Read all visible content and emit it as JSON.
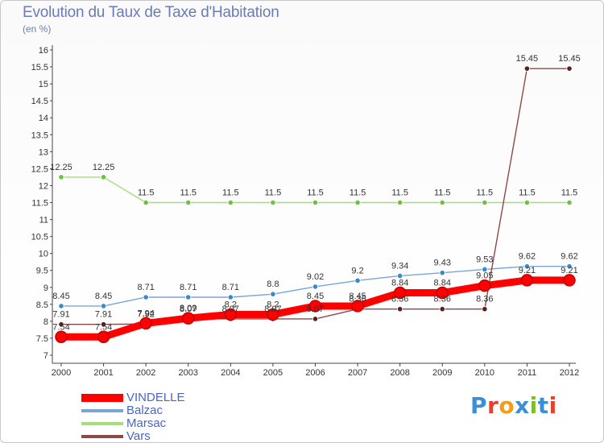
{
  "title": "Evolution du Taux de Taxe d'Habitation",
  "subtitle": "(en %)",
  "logo": {
    "text": "Proxiti",
    "colors": [
      "#3a8fd6",
      "#e8402a",
      "#f29b1d",
      "#3a8fd6",
      "#7cbf2a",
      "#3a8fd6",
      "#e8402a"
    ]
  },
  "chart_data": {
    "type": "line",
    "title": "Evolution du Taux de Taxe d'Habitation",
    "ylabel": "(en %)",
    "xlabel": "",
    "ylim": [
      7,
      16
    ],
    "ytick_step": 0.5,
    "grid": false,
    "legend_position": "bottom-left",
    "categories": [
      "2000",
      "2001",
      "2002",
      "2003",
      "2004",
      "2005",
      "2006",
      "2007",
      "2008",
      "2009",
      "2010",
      "2011",
      "2012"
    ],
    "yticks": [
      "7",
      "7.5",
      "8",
      "8.5",
      "9",
      "9.5",
      "10",
      "10.5",
      "11",
      "11.5",
      "12",
      "12.5",
      "13",
      "13.5",
      "14",
      "14.5",
      "15",
      "15.5",
      "16"
    ],
    "series": [
      {
        "name": "VINDELLE",
        "color": "#ff0000",
        "marker": "#d81010",
        "emphasis": true,
        "values": [
          7.54,
          7.54,
          7.94,
          8.09,
          8.2,
          8.2,
          8.45,
          8.45,
          8.84,
          8.84,
          9.05,
          9.21,
          9.21
        ],
        "labels": [
          "7.54",
          "7.54",
          "7.94",
          "8.09",
          "8.2",
          "8.2",
          "8.45",
          "8.45",
          "8.84",
          "8.84",
          "9.05",
          "9.21",
          "9.21"
        ]
      },
      {
        "name": "Balzac",
        "color": "#7aa6d6",
        "marker": "#3d88c8",
        "emphasis": false,
        "values": [
          8.45,
          8.45,
          8.71,
          8.71,
          8.71,
          8.8,
          9.02,
          9.2,
          9.34,
          9.43,
          9.53,
          9.62,
          9.62
        ],
        "labels": [
          "8.45",
          "8.45",
          "8.71",
          "8.71",
          "8.71",
          "8.8",
          "9.02",
          "9.2",
          "9.34",
          "9.43",
          "9.53",
          "9.62",
          "9.62"
        ]
      },
      {
        "name": "Marsac",
        "color": "#a6dc7a",
        "marker": "#6ec23c",
        "emphasis": false,
        "values": [
          12.25,
          12.25,
          11.5,
          11.5,
          11.5,
          11.5,
          11.5,
          11.5,
          11.5,
          11.5,
          11.5,
          11.5,
          11.5
        ],
        "labels": [
          "12.25",
          "12.25",
          "11.5",
          "11.5",
          "11.5",
          "11.5",
          "11.5",
          "11.5",
          "11.5",
          "11.5",
          "11.5",
          "11.5",
          "11.5"
        ]
      },
      {
        "name": "Vars",
        "color": "#8a4a4a",
        "marker": "#5c1e1e",
        "emphasis": false,
        "values": [
          7.91,
          7.91,
          7.92,
          8.07,
          8.07,
          8.07,
          8.07,
          8.36,
          8.36,
          8.36,
          8.36,
          15.45,
          15.45
        ],
        "labels": [
          "7.91",
          "7.91",
          "7.92",
          "8.07",
          "8.07",
          "8.07",
          "8.07",
          "8.36",
          "8.36",
          "8.36",
          "8.36",
          "15.45",
          "15.45"
        ]
      }
    ]
  }
}
